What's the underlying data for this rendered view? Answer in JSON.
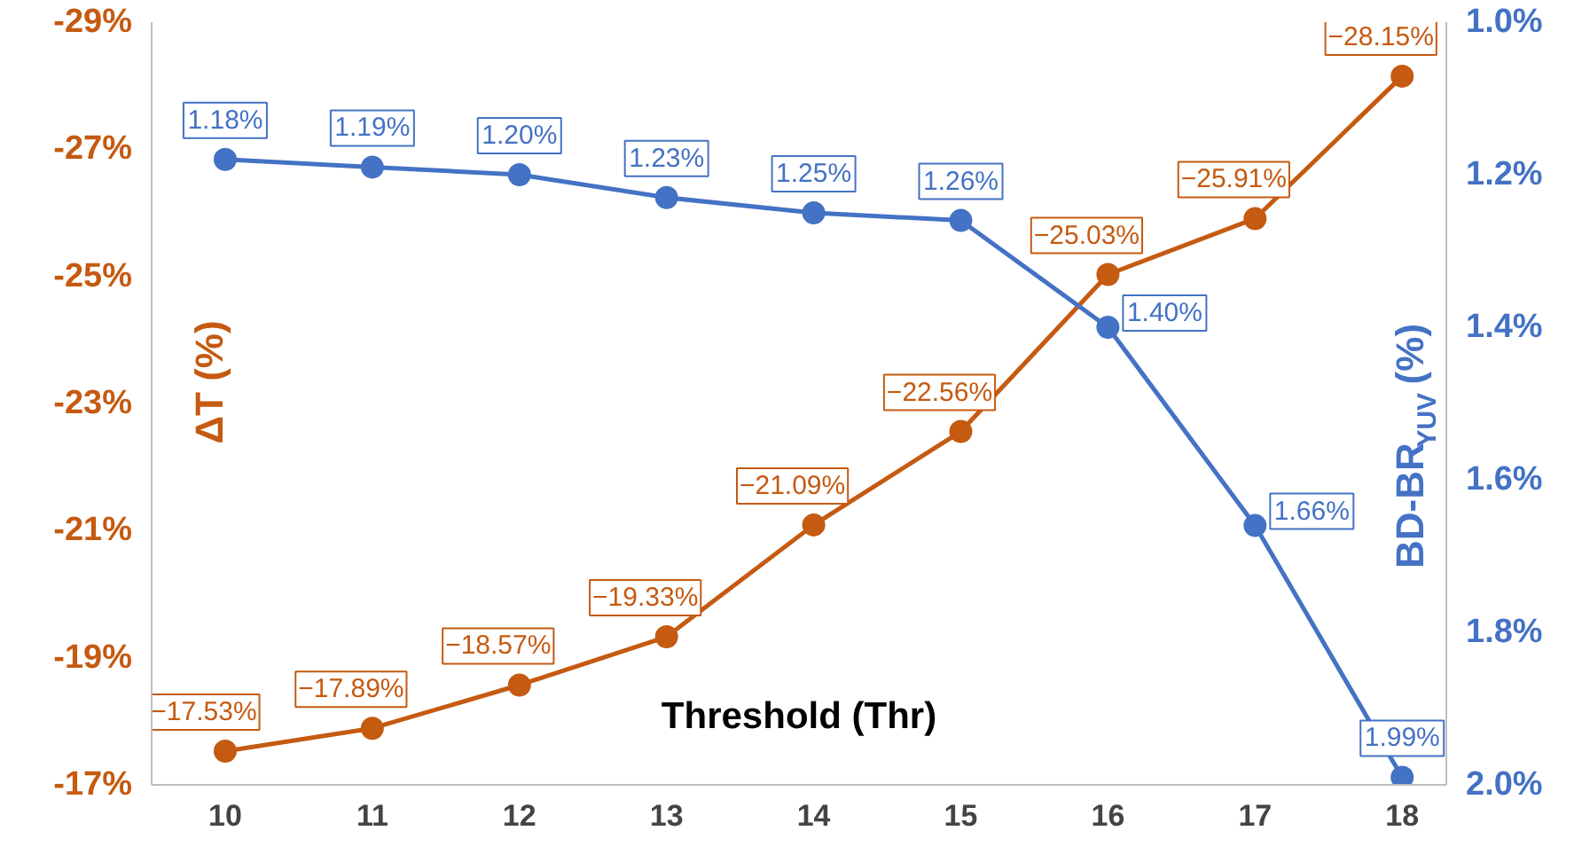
{
  "chart_data": {
    "type": "line",
    "xlabel": "Threshold (Thr)",
    "ylabel": "ΔT (%)",
    "y2label": "BD-BR$_{YUV}$ (%)",
    "x": [
      10,
      11,
      12,
      13,
      14,
      15,
      16,
      17,
      18
    ],
    "xlim": [
      9.5,
      18.3
    ],
    "xticks": [
      10,
      11,
      12,
      13,
      14,
      15,
      16,
      17,
      18
    ],
    "ylim": [
      -17,
      -29
    ],
    "yticks": [
      {
        "value": -17,
        "label": "-17%"
      },
      {
        "value": -19,
        "label": "-19%"
      },
      {
        "value": -21,
        "label": "-21%"
      },
      {
        "value": -23,
        "label": "-23%"
      },
      {
        "value": -25,
        "label": "-25%"
      },
      {
        "value": -27,
        "label": "-27%"
      },
      {
        "value": -29,
        "label": "-29%"
      }
    ],
    "y2lim": [
      2.0,
      1.0
    ],
    "y2ticks": [
      {
        "value": 1.0,
        "label": "1.0%"
      },
      {
        "value": 1.2,
        "label": "1.2%"
      },
      {
        "value": 1.4,
        "label": "1.4%"
      },
      {
        "value": 1.6,
        "label": "1.6%"
      },
      {
        "value": 1.8,
        "label": "1.8%"
      },
      {
        "value": 2.0,
        "label": "2.0%"
      }
    ],
    "series": [
      {
        "color": "#c55a11",
        "values": [
          -17.53,
          -17.89,
          -18.57,
          -19.33,
          -21.09,
          -22.56,
          -25.03,
          -25.91,
          -28.15
        ],
        "value_labels": [
          "−17.53%",
          "−17.89%",
          "−18.57%",
          "−19.33%",
          "−21.09%",
          "−22.56%",
          "−25.03%",
          "−25.91%",
          "−28.15%"
        ]
      },
      {
        "color": "#4472c4",
        "axis": "y2",
        "values": [
          1.18,
          1.19,
          1.2,
          1.23,
          1.25,
          1.26,
          1.4,
          1.66,
          1.99
        ],
        "value_labels": [
          "1.18%",
          "1.19%",
          "1.20%",
          "1.23%",
          "1.25%",
          "1.26%",
          "1.40%",
          "1.66%",
          "1.99%"
        ]
      }
    ],
    "marker": "circle",
    "line_style": "solid",
    "grid": false
  }
}
